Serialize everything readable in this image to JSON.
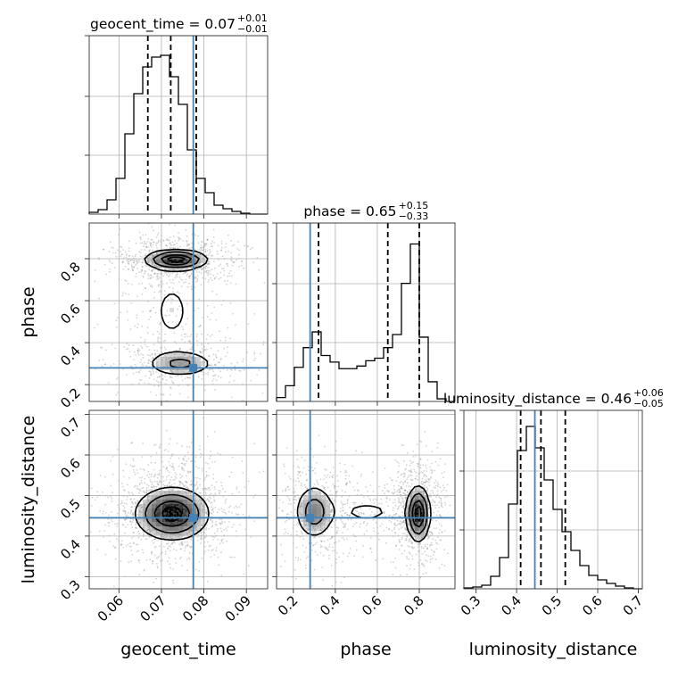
{
  "colors": {
    "truth": "#4682b4",
    "hist": "#000000",
    "contour": "#000000"
  },
  "chart_data": {
    "type": "corner",
    "parameters": [
      "geocent_time",
      "phase",
      "luminosity_distance"
    ],
    "truths": {
      "geocent_time": 0.0775,
      "phase": 0.28,
      "luminosity_distance": 0.445
    },
    "ranges": {
      "geocent_time": [
        0.053,
        0.095
      ],
      "phase": [
        0.12,
        0.97
      ],
      "luminosity_distance": [
        0.27,
        0.71
      ]
    },
    "ticks": {
      "geocent_time": [
        {
          "v": 0.06,
          "label": "0.06"
        },
        {
          "v": 0.07,
          "label": "0.07"
        },
        {
          "v": 0.08,
          "label": "0.08"
        },
        {
          "v": 0.09,
          "label": "0.09"
        }
      ],
      "phase": [
        {
          "v": 0.2,
          "label": "0.2"
        },
        {
          "v": 0.4,
          "label": "0.4"
        },
        {
          "v": 0.6,
          "label": "0.6"
        },
        {
          "v": 0.8,
          "label": "0.8"
        }
      ],
      "luminosity_distance": [
        {
          "v": 0.3,
          "label": "0.3"
        },
        {
          "v": 0.4,
          "label": "0.4"
        },
        {
          "v": 0.5,
          "label": "0.5"
        },
        {
          "v": 0.6,
          "label": "0.6"
        },
        {
          "v": 0.7,
          "label": "0.7"
        }
      ]
    },
    "row_ticks": {
      "phase": [
        {
          "v": 0.2,
          "label": "0.2"
        },
        {
          "v": 0.4,
          "label": "0.4"
        },
        {
          "v": 0.6,
          "label": "0.6"
        },
        {
          "v": 0.8,
          "label": "0.8"
        }
      ],
      "luminosity_distance": [
        {
          "v": 0.3,
          "label": "0.3"
        },
        {
          "v": 0.4,
          "label": "0.4"
        },
        {
          "v": 0.5,
          "label": "0.5"
        },
        {
          "v": 0.6,
          "label": "0.6"
        },
        {
          "v": 0.7,
          "label": "0.7"
        }
      ]
    },
    "titles": {
      "geocent_time": {
        "main": "geocent_time = 0.07",
        "plus": "+0.01",
        "minus": "−0.01"
      },
      "phase": {
        "main": "phase = 0.65",
        "plus": "+0.15",
        "minus": "−0.33"
      },
      "luminosity_distance": {
        "main": "luminosity_distance = 0.46",
        "plus": "+0.06",
        "minus": "−0.05"
      }
    },
    "quantiles": {
      "geocent_time": [
        0.0668,
        0.0722,
        0.0782
      ],
      "phase": [
        0.32,
        0.65,
        0.8
      ],
      "luminosity_distance": [
        0.41,
        0.46,
        0.52
      ]
    },
    "histograms": {
      "geocent_time": {
        "edges": [
          0.053,
          0.0551,
          0.0572,
          0.0593,
          0.0614,
          0.0635,
          0.0656,
          0.0677,
          0.0698,
          0.0719,
          0.074,
          0.0761,
          0.0782,
          0.0803,
          0.0824,
          0.0845,
          0.0866,
          0.0887,
          0.0908,
          0.0929,
          0.095
        ],
        "counts": [
          2,
          5,
          16,
          40,
          90,
          135,
          165,
          176,
          178,
          154,
          123,
          72,
          40,
          24,
          10,
          6,
          3,
          1,
          0,
          0
        ]
      },
      "phase": {
        "edges": [
          0.12,
          0.1625,
          0.205,
          0.2475,
          0.29,
          0.3325,
          0.375,
          0.4175,
          0.46,
          0.5025,
          0.545,
          0.5875,
          0.63,
          0.6725,
          0.715,
          0.7575,
          0.8,
          0.8425,
          0.885,
          0.9275,
          0.97
        ],
        "counts": [
          3,
          12,
          26,
          41,
          53,
          35,
          30,
          25,
          25,
          27,
          31,
          33,
          41,
          51,
          90,
          120,
          49,
          15,
          2,
          0
        ]
      },
      "luminosity_distance": {
        "edges": [
          0.27,
          0.292,
          0.314,
          0.336,
          0.358,
          0.38,
          0.402,
          0.424,
          0.446,
          0.468,
          0.49,
          0.512,
          0.534,
          0.556,
          0.578,
          0.6,
          0.622,
          0.644,
          0.666,
          0.688,
          0.71
        ],
        "counts": [
          1,
          2,
          4,
          14,
          35,
          95,
          155,
          182,
          158,
          122,
          89,
          64,
          43,
          26,
          15,
          10,
          6,
          3,
          1,
          0
        ]
      }
    },
    "hist_ymax": {
      "geocent_time": 200,
      "phase": 136,
      "luminosity_distance": 200
    },
    "scatter": {
      "phase|geocent_time": {
        "seed": 11,
        "clusters": [
          {
            "cx": 0.0735,
            "cy": 0.795,
            "sx": 0.0055,
            "sy": 0.045,
            "w": 0.55
          },
          {
            "cx": 0.074,
            "cy": 0.3,
            "sx": 0.006,
            "sy": 0.05,
            "w": 0.3
          },
          {
            "cx": 0.072,
            "cy": 0.55,
            "sx": 0.0065,
            "sy": 0.16,
            "w": 0.15
          }
        ],
        "n": 1400
      },
      "luminosity_distance|geocent_time": {
        "seed": 23,
        "clusters": [
          {
            "cx": 0.0725,
            "cy": 0.46,
            "sx": 0.0058,
            "sy": 0.05,
            "w": 1.0
          }
        ],
        "n": 1400
      },
      "luminosity_distance|phase": {
        "seed": 37,
        "clusters": [
          {
            "cx": 0.3,
            "cy": 0.46,
            "sx": 0.07,
            "sy": 0.05,
            "w": 0.35
          },
          {
            "cx": 0.79,
            "cy": 0.46,
            "sx": 0.05,
            "sy": 0.05,
            "w": 0.5
          },
          {
            "cx": 0.55,
            "cy": 0.46,
            "sx": 0.12,
            "sy": 0.04,
            "w": 0.15
          }
        ],
        "n": 1400
      }
    },
    "density": {
      "phase|geocent_time": [
        {
          "cx": 0.0735,
          "cy": 0.795,
          "sx": 0.0034,
          "sy": 0.022,
          "w": 1.0
        },
        {
          "cx": 0.0745,
          "cy": 0.3,
          "sx": 0.004,
          "sy": 0.03,
          "w": 0.35
        },
        {
          "cx": 0.0725,
          "cy": 0.55,
          "sx": 0.004,
          "sy": 0.13,
          "w": 0.12
        }
      ],
      "luminosity_distance|geocent_time": [
        {
          "cx": 0.0725,
          "cy": 0.455,
          "sx": 0.004,
          "sy": 0.03,
          "w": 1.0
        }
      ],
      "luminosity_distance|phase": [
        {
          "cx": 0.3,
          "cy": 0.46,
          "sx": 0.045,
          "sy": 0.033,
          "w": 0.45
        },
        {
          "cx": 0.795,
          "cy": 0.455,
          "sx": 0.026,
          "sy": 0.032,
          "w": 1.0
        },
        {
          "cx": 0.55,
          "cy": 0.46,
          "sx": 0.12,
          "sy": 0.025,
          "w": 0.12
        }
      ]
    },
    "contour_levels": [
      0.1,
      0.3,
      0.6,
      0.85
    ],
    "xlabels": [
      "geocent_time",
      "phase",
      "luminosity_distance"
    ],
    "ylabels": [
      "phase",
      "luminosity_distance"
    ]
  }
}
